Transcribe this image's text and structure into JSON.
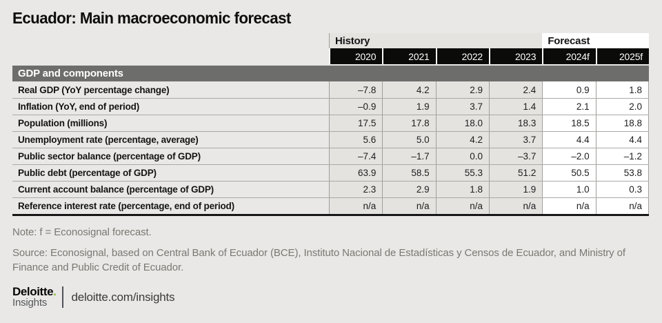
{
  "page": {
    "title": "Ecuador: Main macroeconomic forecast"
  },
  "table": {
    "groups": {
      "history": "History",
      "forecast": "Forecast"
    },
    "columns": [
      "2020",
      "2021",
      "2022",
      "2023",
      "2024f",
      "2025f"
    ],
    "section_header": "GDP and components",
    "rows": [
      {
        "label": "Real GDP (YoY percentage change)",
        "display": [
          "–7.8",
          "4.2",
          "2.9",
          "2.4",
          "0.9",
          "1.8"
        ]
      },
      {
        "label": "Inflation (YoY, end of period)",
        "display": [
          "–0.9",
          "1.9",
          "3.7",
          "1.4",
          "2.1",
          "2.0"
        ]
      },
      {
        "label": "Population (millions)",
        "display": [
          "17.5",
          "17.8",
          "18.0",
          "18.3",
          "18.5",
          "18.8"
        ]
      },
      {
        "label": "Unemployment rate (percentage, average)",
        "display": [
          "5.6",
          "5.0",
          "4.2",
          "3.7",
          "4.4",
          "4.4"
        ]
      },
      {
        "label": "Public sector balance (percentage of GDP)",
        "display": [
          "–7.4",
          "–1.7",
          "0.0",
          "–3.7",
          "–2.0",
          "–1.2"
        ]
      },
      {
        "label": "Public debt (percentage of GDP)",
        "display": [
          "63.9",
          "58.5",
          "55.3",
          "51.2",
          "50.5",
          "53.8"
        ]
      },
      {
        "label": "Current account balance (percentage of GDP)",
        "display": [
          "2.3",
          "2.9",
          "1.8",
          "1.9",
          "1.0",
          "0.3"
        ]
      },
      {
        "label": "Reference interest rate (percentage, end of period)",
        "display": [
          "n/a",
          "n/a",
          "n/a",
          "n/a",
          "n/a",
          "n/a"
        ]
      }
    ]
  },
  "chart_data": {
    "type": "table",
    "title": "Ecuador: Main macroeconomic forecast",
    "section": "GDP and components",
    "column_groups": [
      {
        "label": "History",
        "columns": [
          "2020",
          "2021",
          "2022",
          "2023"
        ]
      },
      {
        "label": "Forecast",
        "columns": [
          "2024f",
          "2025f"
        ]
      }
    ],
    "columns": [
      "2020",
      "2021",
      "2022",
      "2023",
      "2024f",
      "2025f"
    ],
    "rows": [
      {
        "label": "Real GDP (YoY percentage change)",
        "values": [
          -7.8,
          4.2,
          2.9,
          2.4,
          0.9,
          1.8
        ]
      },
      {
        "label": "Inflation (YoY, end of period)",
        "values": [
          -0.9,
          1.9,
          3.7,
          1.4,
          2.1,
          2.0
        ]
      },
      {
        "label": "Population (millions)",
        "values": [
          17.5,
          17.8,
          18.0,
          18.3,
          18.5,
          18.8
        ]
      },
      {
        "label": "Unemployment rate (percentage, average)",
        "values": [
          5.6,
          5.0,
          4.2,
          3.7,
          4.4,
          4.4
        ]
      },
      {
        "label": "Public sector balance (percentage of GDP)",
        "values": [
          -7.4,
          -1.7,
          0.0,
          -3.7,
          -2.0,
          -1.2
        ]
      },
      {
        "label": "Public debt (percentage of GDP)",
        "values": [
          63.9,
          58.5,
          55.3,
          51.2,
          50.5,
          53.8
        ]
      },
      {
        "label": "Current account balance (percentage of GDP)",
        "values": [
          2.3,
          2.9,
          1.8,
          1.9,
          1.0,
          0.3
        ]
      },
      {
        "label": "Reference interest rate (percentage, end of period)",
        "values": [
          "n/a",
          "n/a",
          "n/a",
          "n/a",
          "n/a",
          "n/a"
        ]
      }
    ],
    "note": "Note: f = Econosignal forecast.",
    "source": "Source: Econosignal, based on Central Bank of Ecuador (BCE), Instituto Nacional de Estadísticas y Censos de Ecuador, and Ministry of Finance and Public Credit of Ecuador."
  },
  "notes": {
    "note": "Note: f = Econosignal forecast.",
    "source": "Source: Econosignal, based on Central Bank of Ecuador (BCE), Instituto Nacional de Estadísticas y Censos de Ecuador, and Ministry of Finance and Public Credit of Ecuador."
  },
  "footer": {
    "brand_name": "Deloitte",
    "brand_dot": ".",
    "brand_sub": "Insights",
    "url": "deloitte.com/insights"
  },
  "colors": {
    "page_bg": "#e9e8e6",
    "section_band": "#6d6d6b",
    "year_band": "#0b0b0a",
    "history_fill": "#e4e3e0",
    "forecast_fill": "#ffffff",
    "accent_green": "#86bc25"
  }
}
